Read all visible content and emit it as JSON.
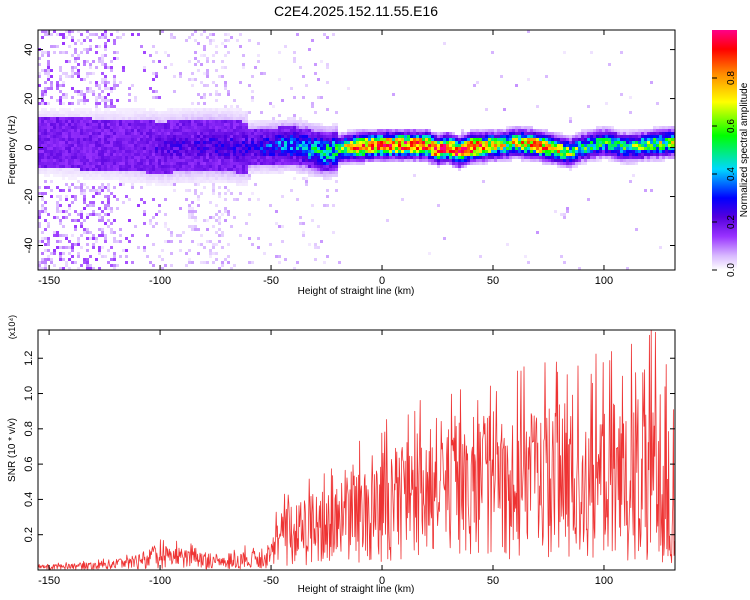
{
  "title": "C2E4.2025.152.11.55.E16",
  "chart_data": [
    {
      "type": "heatmap",
      "xlabel": "Height of straight line (km)",
      "ylabel": "Frequency (Hz)",
      "xlim": [
        -155,
        132
      ],
      "ylim": [
        -50,
        48
      ],
      "x_ticks": [
        -150,
        -100,
        -50,
        0,
        50,
        100
      ],
      "y_ticks": [
        -40,
        -20,
        0,
        20,
        40
      ],
      "colorbar": {
        "label": "Normalized spectral amplitude",
        "range": [
          0,
          1
        ],
        "ticks": [
          0.0,
          0.2,
          0.4,
          0.6,
          0.8
        ],
        "colormap": [
          "#ffffff",
          "#d8b8ff",
          "#9933ff",
          "#5500dd",
          "#0000ff",
          "#00d8ff",
          "#00ff00",
          "#ffff00",
          "#ff8800",
          "#ff0000",
          "#ff0088"
        ]
      },
      "ridge": {
        "center_frequency_hz": [
          {
            "x": -150,
            "y": 2
          },
          {
            "x": -120,
            "y": 1
          },
          {
            "x": -100,
            "y": 0
          },
          {
            "x": -80,
            "y": 1
          },
          {
            "x": -60,
            "y": 0
          },
          {
            "x": -40,
            "y": 1
          },
          {
            "x": -25,
            "y": -2
          },
          {
            "x": -15,
            "y": 0
          },
          {
            "x": 0,
            "y": 1
          },
          {
            "x": 10,
            "y": 1
          },
          {
            "x": 20,
            "y": 1
          },
          {
            "x": 25,
            "y": -1
          },
          {
            "x": 30,
            "y": 0
          },
          {
            "x": 35,
            "y": -2
          },
          {
            "x": 40,
            "y": 0
          },
          {
            "x": 55,
            "y": 1
          },
          {
            "x": 60,
            "y": 2
          },
          {
            "x": 70,
            "y": 1
          },
          {
            "x": 80,
            "y": -1
          },
          {
            "x": 85,
            "y": -2
          },
          {
            "x": 90,
            "y": 0
          },
          {
            "x": 100,
            "y": 2
          },
          {
            "x": 110,
            "y": 0
          },
          {
            "x": 120,
            "y": 1
          },
          {
            "x": 130,
            "y": 2
          }
        ],
        "peak_amplitude": [
          {
            "x": -150,
            "y": 0.15
          },
          {
            "x": -120,
            "y": 0.2
          },
          {
            "x": -100,
            "y": 0.3
          },
          {
            "x": -60,
            "y": 0.35
          },
          {
            "x": -40,
            "y": 0.5
          },
          {
            "x": -20,
            "y": 0.6
          },
          {
            "x": -10,
            "y": 0.9
          },
          {
            "x": 20,
            "y": 0.95
          },
          {
            "x": 40,
            "y": 1.0
          },
          {
            "x": 55,
            "y": 0.7
          },
          {
            "x": 70,
            "y": 0.9
          },
          {
            "x": 90,
            "y": 0.6
          },
          {
            "x": 110,
            "y": 0.6
          },
          {
            "x": 130,
            "y": 0.7
          }
        ]
      }
    },
    {
      "type": "line",
      "xlabel": "Height of straight line (km)",
      "ylabel": "SNR (10 * v/v)",
      "y_multiplier": "(x10⁴)",
      "xlim": [
        -155,
        132
      ],
      "ylim": [
        0,
        1.36
      ],
      "x_ticks": [
        -150,
        -100,
        -50,
        0,
        50,
        100
      ],
      "y_ticks": [
        0.2,
        0.4,
        0.6,
        0.8,
        1.0,
        1.2
      ],
      "color": "#ee3333",
      "series": [
        {
          "envelope": [
            {
              "x": -155,
              "base": 0.02,
              "peak": 0.03
            },
            {
              "x": -130,
              "base": 0.03,
              "peak": 0.05
            },
            {
              "x": -115,
              "base": 0.05,
              "peak": 0.08
            },
            {
              "x": -100,
              "base": 0.08,
              "peak": 0.16
            },
            {
              "x": -85,
              "base": 0.08,
              "peak": 0.15
            },
            {
              "x": -75,
              "base": 0.05,
              "peak": 0.1
            },
            {
              "x": -55,
              "base": 0.07,
              "peak": 0.14
            },
            {
              "x": -45,
              "base": 0.2,
              "peak": 0.4
            },
            {
              "x": -25,
              "base": 0.3,
              "peak": 0.55
            },
            {
              "x": -10,
              "base": 0.38,
              "peak": 0.7
            },
            {
              "x": 0,
              "base": 0.42,
              "peak": 0.78
            },
            {
              "x": 20,
              "base": 0.5,
              "peak": 0.9
            },
            {
              "x": 40,
              "base": 0.6,
              "peak": 1.0
            },
            {
              "x": 60,
              "base": 0.62,
              "peak": 1.05
            },
            {
              "x": 75,
              "base": 0.6,
              "peak": 1.1
            },
            {
              "x": 90,
              "base": 0.55,
              "peak": 1.1
            },
            {
              "x": 110,
              "base": 0.5,
              "peak": 1.15
            },
            {
              "x": 125,
              "base": 0.45,
              "peak": 1.3
            },
            {
              "x": 132,
              "base": 0.4,
              "peak": 1.2
            }
          ]
        }
      ]
    }
  ]
}
